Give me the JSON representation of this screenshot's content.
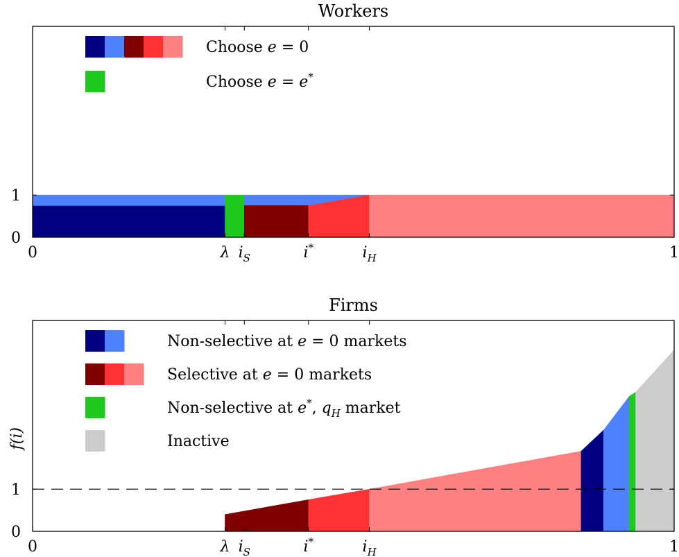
{
  "chart_data": [
    {
      "type": "area",
      "title": "Workers",
      "xlabel": "",
      "ylabel": "",
      "xlim": [
        0,
        1
      ],
      "ylim": [
        0,
        5
      ],
      "x_ticks": [
        {
          "x": 0,
          "label": "0"
        },
        {
          "x": 0.3,
          "label": "λ",
          "math": "lambda"
        },
        {
          "x": 0.33,
          "label": "i",
          "sub": "S"
        },
        {
          "x": 0.43,
          "label": "i",
          "sup": "*"
        },
        {
          "x": 0.525,
          "label": "i",
          "sub": "H"
        },
        {
          "x": 1,
          "label": "1"
        }
      ],
      "y_ticks": [
        {
          "y": 0,
          "label": "0"
        },
        {
          "y": 1,
          "label": "1"
        }
      ],
      "series": [
        {
          "color": "#000080",
          "points": [
            [
              0,
              0
            ],
            [
              0.3,
              0
            ],
            [
              0.3,
              0.75
            ],
            [
              0,
              0.75
            ]
          ]
        },
        {
          "color": "#4f81ff",
          "points": [
            [
              0,
              0.75
            ],
            [
              0.3,
              0.75
            ],
            [
              0.3,
              1
            ],
            [
              0,
              1
            ]
          ]
        },
        {
          "color": "#1ec81e",
          "points": [
            [
              0.3,
              0
            ],
            [
              0.33,
              0
            ],
            [
              0.33,
              1
            ],
            [
              0.3,
              1
            ]
          ]
        },
        {
          "color": "#4f81ff",
          "points": [
            [
              0.33,
              0.75
            ],
            [
              0.43,
              0.75
            ],
            [
              0.525,
              1
            ],
            [
              0.33,
              1
            ]
          ]
        },
        {
          "color": "#800000",
          "points": [
            [
              0.33,
              0
            ],
            [
              0.43,
              0
            ],
            [
              0.43,
              0.75
            ],
            [
              0.33,
              0.75
            ]
          ]
        },
        {
          "color": "#ff3333",
          "points": [
            [
              0.43,
              0
            ],
            [
              0.525,
              0
            ],
            [
              0.525,
              1
            ],
            [
              0.43,
              0.75
            ]
          ]
        },
        {
          "color": "#ff8080",
          "points": [
            [
              0.525,
              0
            ],
            [
              1,
              0
            ],
            [
              1,
              1
            ],
            [
              0.525,
              1
            ]
          ]
        }
      ],
      "legend": [
        {
          "swatches": [
            "#000080",
            "#4f81ff",
            "#800000",
            "#ff3333",
            "#ff8080"
          ],
          "text": "Choose ",
          "math_var": "e",
          "math_rest": " = 0"
        },
        {
          "swatches": [
            "#1ec81e"
          ],
          "text": "Choose ",
          "math_var": "e",
          "math_rest": " = e",
          "math_sup": "*"
        }
      ],
      "legend_position": "top-left"
    },
    {
      "type": "area",
      "title": "Firms",
      "xlabel": "",
      "ylabel": "f(i)",
      "xlim": [
        0,
        1
      ],
      "ylim": [
        0,
        5
      ],
      "hline": {
        "y": 1,
        "style": "dashed"
      },
      "x_ticks": [
        {
          "x": 0,
          "label": "0"
        },
        {
          "x": 0.3,
          "label": "λ",
          "math": "lambda"
        },
        {
          "x": 0.33,
          "label": "i",
          "sub": "S"
        },
        {
          "x": 0.43,
          "label": "i",
          "sup": "*"
        },
        {
          "x": 0.525,
          "label": "i",
          "sub": "H"
        },
        {
          "x": 1,
          "label": "1"
        }
      ],
      "y_ticks": [
        {
          "y": 0,
          "label": "0"
        },
        {
          "y": 1,
          "label": "1"
        }
      ],
      "series": [
        {
          "color": "#800000",
          "points": [
            [
              0.3,
              0
            ],
            [
              0.43,
              0
            ],
            [
              0.43,
              0.75
            ],
            [
              0.3,
              0.4
            ]
          ]
        },
        {
          "color": "#ff3333",
          "points": [
            [
              0.43,
              0
            ],
            [
              0.525,
              0
            ],
            [
              0.525,
              1
            ],
            [
              0.43,
              0.75
            ]
          ]
        },
        {
          "color": "#ff8080",
          "points": [
            [
              0.525,
              0
            ],
            [
              0.855,
              0
            ],
            [
              0.855,
              1.9
            ],
            [
              0.525,
              1
            ]
          ]
        },
        {
          "color": "#000080",
          "points": [
            [
              0.855,
              0
            ],
            [
              0.89,
              0
            ],
            [
              0.89,
              2.4
            ],
            [
              0.855,
              1.9
            ]
          ]
        },
        {
          "color": "#4f81ff",
          "points": [
            [
              0.89,
              0
            ],
            [
              0.93,
              0
            ],
            [
              0.93,
              3.2
            ],
            [
              0.89,
              2.4
            ]
          ]
        },
        {
          "color": "#1ec81e",
          "points": [
            [
              0.93,
              0
            ],
            [
              0.94,
              0
            ],
            [
              0.94,
              3.3
            ],
            [
              0.93,
              3.2
            ]
          ]
        },
        {
          "color": "#cccccc",
          "points": [
            [
              0.94,
              0
            ],
            [
              1,
              0
            ],
            [
              1,
              4.3
            ],
            [
              0.94,
              3.3
            ]
          ]
        }
      ],
      "legend": [
        {
          "swatches": [
            "#000080",
            "#4f81ff"
          ],
          "text": "Non-selective at ",
          "math_var": "e",
          "math_rest": " = 0",
          "tail": " markets"
        },
        {
          "swatches": [
            "#800000",
            "#ff3333",
            "#ff8080"
          ],
          "text": "Selective at ",
          "math_var": "e",
          "math_rest": " = 0",
          "tail": " markets"
        },
        {
          "swatches": [
            "#1ec81e"
          ],
          "text": "Non-selective at ",
          "math_var": "e",
          "math_sup": "*",
          "math_rest": ", q",
          "math_sub": "H",
          "tail": " market"
        },
        {
          "swatches": [
            "#cccccc"
          ],
          "text": "Inactive"
        }
      ],
      "legend_position": "top-left"
    }
  ]
}
